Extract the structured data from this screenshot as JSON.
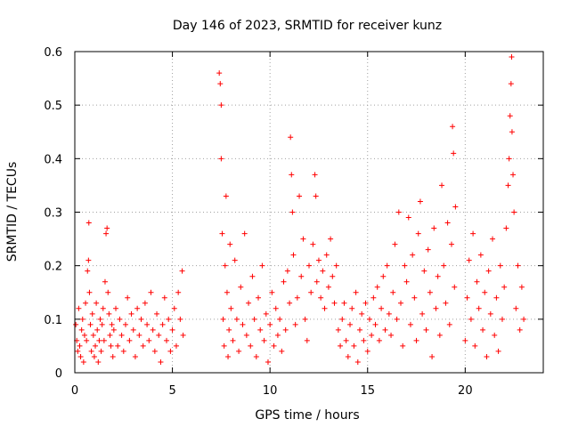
{
  "chart_data": {
    "type": "scatter",
    "title": "Day 146 of 2023, SRMTID for receiver kunz",
    "xlabel": "GPS time / hours",
    "ylabel": "SRMTID / TECUs",
    "xlim": [
      0,
      24
    ],
    "ylim": [
      0,
      0.6
    ],
    "xticks": [
      0,
      5,
      10,
      15,
      20
    ],
    "xtick_labels": [
      "0",
      "5",
      "10",
      "15",
      "20"
    ],
    "yticks": [
      0,
      0.1,
      0.2,
      0.3,
      0.4,
      0.5,
      0.6
    ],
    "ytick_labels": [
      "0",
      "0.1",
      "0.2",
      "0.3",
      "0.4",
      "0.5",
      "0.6"
    ],
    "grid": true,
    "marker": "+",
    "marker_color": "#ff0000",
    "series": [
      {
        "name": "SRMTID",
        "points": [
          [
            0.05,
            0.09
          ],
          [
            0.1,
            0.06
          ],
          [
            0.15,
            0.04
          ],
          [
            0.2,
            0.12
          ],
          [
            0.25,
            0.05
          ],
          [
            0.3,
            0.03
          ],
          [
            0.35,
            0.08
          ],
          [
            0.4,
            0.1
          ],
          [
            0.45,
            0.02
          ],
          [
            0.5,
            0.07
          ],
          [
            0.55,
            0.13
          ],
          [
            0.6,
            0.06
          ],
          [
            0.65,
            0.19
          ],
          [
            0.7,
            0.21
          ],
          [
            0.72,
            0.28
          ],
          [
            0.75,
            0.15
          ],
          [
            0.8,
            0.09
          ],
          [
            0.85,
            0.04
          ],
          [
            0.9,
            0.11
          ],
          [
            0.95,
            0.07
          ],
          [
            1.0,
            0.03
          ],
          [
            1.05,
            0.05
          ],
          [
            1.1,
            0.13
          ],
          [
            1.15,
            0.08
          ],
          [
            1.2,
            0.02
          ],
          [
            1.25,
            0.06
          ],
          [
            1.3,
            0.1
          ],
          [
            1.35,
            0.04
          ],
          [
            1.4,
            0.09
          ],
          [
            1.45,
            0.12
          ],
          [
            1.5,
            0.06
          ],
          [
            1.55,
            0.17
          ],
          [
            1.6,
            0.26
          ],
          [
            1.65,
            0.27
          ],
          [
            1.7,
            0.15
          ],
          [
            1.75,
            0.11
          ],
          [
            1.8,
            0.07
          ],
          [
            1.85,
            0.05
          ],
          [
            1.9,
            0.09
          ],
          [
            1.95,
            0.03
          ],
          [
            2.0,
            0.08
          ],
          [
            2.1,
            0.12
          ],
          [
            2.2,
            0.05
          ],
          [
            2.3,
            0.1
          ],
          [
            2.4,
            0.07
          ],
          [
            2.5,
            0.04
          ],
          [
            2.6,
            0.09
          ],
          [
            2.7,
            0.14
          ],
          [
            2.8,
            0.06
          ],
          [
            2.9,
            0.11
          ],
          [
            3.0,
            0.08
          ],
          [
            3.1,
            0.03
          ],
          [
            3.2,
            0.12
          ],
          [
            3.3,
            0.07
          ],
          [
            3.4,
            0.1
          ],
          [
            3.5,
            0.05
          ],
          [
            3.6,
            0.13
          ],
          [
            3.7,
            0.09
          ],
          [
            3.8,
            0.06
          ],
          [
            3.9,
            0.15
          ],
          [
            4.0,
            0.08
          ],
          [
            4.1,
            0.04
          ],
          [
            4.2,
            0.11
          ],
          [
            4.3,
            0.07
          ],
          [
            4.4,
            0.02
          ],
          [
            4.5,
            0.09
          ],
          [
            4.6,
            0.14
          ],
          [
            4.7,
            0.06
          ],
          [
            4.8,
            0.1
          ],
          [
            4.9,
            0.04
          ],
          [
            5.0,
            0.08
          ],
          [
            5.1,
            0.12
          ],
          [
            5.2,
            0.05
          ],
          [
            5.3,
            0.15
          ],
          [
            5.4,
            0.1
          ],
          [
            5.5,
            0.19
          ],
          [
            5.55,
            0.07
          ],
          [
            7.4,
            0.56
          ],
          [
            7.45,
            0.54
          ],
          [
            7.5,
            0.5
          ],
          [
            7.5,
            0.4
          ],
          [
            7.55,
            0.26
          ],
          [
            7.6,
            0.1
          ],
          [
            7.65,
            0.05
          ],
          [
            7.7,
            0.2
          ],
          [
            7.75,
            0.33
          ],
          [
            7.8,
            0.15
          ],
          [
            7.85,
            0.03
          ],
          [
            7.9,
            0.08
          ],
          [
            7.95,
            0.24
          ],
          [
            8.0,
            0.12
          ],
          [
            8.1,
            0.06
          ],
          [
            8.2,
            0.21
          ],
          [
            8.3,
            0.1
          ],
          [
            8.4,
            0.04
          ],
          [
            8.5,
            0.16
          ],
          [
            8.6,
            0.09
          ],
          [
            8.7,
            0.26
          ],
          [
            8.8,
            0.07
          ],
          [
            8.9,
            0.13
          ],
          [
            9.0,
            0.05
          ],
          [
            9.1,
            0.18
          ],
          [
            9.2,
            0.1
          ],
          [
            9.3,
            0.03
          ],
          [
            9.4,
            0.14
          ],
          [
            9.5,
            0.08
          ],
          [
            9.6,
            0.2
          ],
          [
            9.7,
            0.06
          ],
          [
            9.8,
            0.11
          ],
          [
            9.9,
            0.02
          ],
          [
            10.0,
            0.09
          ],
          [
            10.1,
            0.15
          ],
          [
            10.2,
            0.05
          ],
          [
            10.3,
            0.12
          ],
          [
            10.4,
            0.07
          ],
          [
            10.5,
            0.1
          ],
          [
            10.6,
            0.04
          ],
          [
            10.7,
            0.17
          ],
          [
            10.8,
            0.08
          ],
          [
            10.9,
            0.19
          ],
          [
            11.0,
            0.13
          ],
          [
            11.05,
            0.44
          ],
          [
            11.1,
            0.37
          ],
          [
            11.15,
            0.3
          ],
          [
            11.2,
            0.22
          ],
          [
            11.3,
            0.09
          ],
          [
            11.4,
            0.14
          ],
          [
            11.5,
            0.33
          ],
          [
            11.6,
            0.18
          ],
          [
            11.7,
            0.25
          ],
          [
            11.8,
            0.1
          ],
          [
            11.9,
            0.06
          ],
          [
            12.0,
            0.2
          ],
          [
            12.1,
            0.15
          ],
          [
            12.2,
            0.24
          ],
          [
            12.3,
            0.37
          ],
          [
            12.35,
            0.33
          ],
          [
            12.4,
            0.17
          ],
          [
            12.5,
            0.21
          ],
          [
            12.6,
            0.14
          ],
          [
            12.7,
            0.19
          ],
          [
            12.8,
            0.12
          ],
          [
            12.9,
            0.22
          ],
          [
            13.0,
            0.16
          ],
          [
            13.1,
            0.25
          ],
          [
            13.2,
            0.18
          ],
          [
            13.3,
            0.13
          ],
          [
            13.4,
            0.2
          ],
          [
            13.5,
            0.08
          ],
          [
            13.6,
            0.05
          ],
          [
            13.7,
            0.1
          ],
          [
            13.8,
            0.13
          ],
          [
            13.9,
            0.06
          ],
          [
            14.0,
            0.03
          ],
          [
            14.1,
            0.09
          ],
          [
            14.2,
            0.12
          ],
          [
            14.3,
            0.05
          ],
          [
            14.4,
            0.15
          ],
          [
            14.5,
            0.02
          ],
          [
            14.6,
            0.08
          ],
          [
            14.7,
            0.11
          ],
          [
            14.8,
            0.06
          ],
          [
            14.9,
            0.13
          ],
          [
            15.0,
            0.04
          ],
          [
            15.1,
            0.1
          ],
          [
            15.2,
            0.07
          ],
          [
            15.3,
            0.14
          ],
          [
            15.4,
            0.09
          ],
          [
            15.5,
            0.16
          ],
          [
            15.6,
            0.06
          ],
          [
            15.7,
            0.12
          ],
          [
            15.8,
            0.18
          ],
          [
            15.9,
            0.08
          ],
          [
            16.0,
            0.2
          ],
          [
            16.1,
            0.11
          ],
          [
            16.2,
            0.07
          ],
          [
            16.3,
            0.15
          ],
          [
            16.4,
            0.24
          ],
          [
            16.5,
            0.1
          ],
          [
            16.6,
            0.3
          ],
          [
            16.7,
            0.13
          ],
          [
            16.8,
            0.05
          ],
          [
            16.9,
            0.2
          ],
          [
            17.0,
            0.17
          ],
          [
            17.1,
            0.29
          ],
          [
            17.2,
            0.09
          ],
          [
            17.3,
            0.22
          ],
          [
            17.4,
            0.14
          ],
          [
            17.5,
            0.06
          ],
          [
            17.6,
            0.26
          ],
          [
            17.7,
            0.32
          ],
          [
            17.8,
            0.11
          ],
          [
            17.9,
            0.19
          ],
          [
            18.0,
            0.08
          ],
          [
            18.1,
            0.23
          ],
          [
            18.2,
            0.15
          ],
          [
            18.3,
            0.03
          ],
          [
            18.4,
            0.27
          ],
          [
            18.5,
            0.12
          ],
          [
            18.6,
            0.18
          ],
          [
            18.7,
            0.07
          ],
          [
            18.8,
            0.35
          ],
          [
            18.9,
            0.2
          ],
          [
            19.0,
            0.13
          ],
          [
            19.1,
            0.28
          ],
          [
            19.2,
            0.09
          ],
          [
            19.3,
            0.24
          ],
          [
            19.35,
            0.46
          ],
          [
            19.4,
            0.41
          ],
          [
            19.45,
            0.16
          ],
          [
            19.5,
            0.31
          ],
          [
            20.0,
            0.06
          ],
          [
            20.1,
            0.14
          ],
          [
            20.2,
            0.21
          ],
          [
            20.3,
            0.1
          ],
          [
            20.4,
            0.26
          ],
          [
            20.5,
            0.05
          ],
          [
            20.6,
            0.17
          ],
          [
            20.7,
            0.12
          ],
          [
            20.8,
            0.22
          ],
          [
            20.9,
            0.08
          ],
          [
            21.0,
            0.15
          ],
          [
            21.1,
            0.03
          ],
          [
            21.2,
            0.19
          ],
          [
            21.3,
            0.11
          ],
          [
            21.4,
            0.25
          ],
          [
            21.5,
            0.07
          ],
          [
            21.6,
            0.14
          ],
          [
            21.7,
            0.04
          ],
          [
            21.8,
            0.2
          ],
          [
            21.9,
            0.1
          ],
          [
            22.0,
            0.16
          ],
          [
            22.1,
            0.27
          ],
          [
            22.2,
            0.35
          ],
          [
            22.25,
            0.4
          ],
          [
            22.3,
            0.48
          ],
          [
            22.35,
            0.54
          ],
          [
            22.38,
            0.59
          ],
          [
            22.4,
            0.45
          ],
          [
            22.45,
            0.37
          ],
          [
            22.5,
            0.3
          ],
          [
            22.6,
            0.12
          ],
          [
            22.7,
            0.2
          ],
          [
            22.8,
            0.08
          ],
          [
            22.9,
            0.16
          ],
          [
            23.0,
            0.1
          ]
        ]
      }
    ]
  }
}
